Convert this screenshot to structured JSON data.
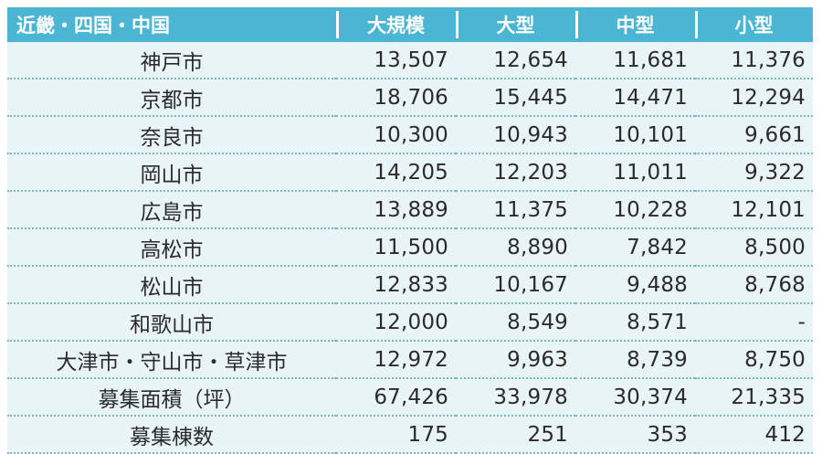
{
  "table": {
    "headers": [
      "近畿・四国・中国",
      "大規模",
      "大型",
      "中型",
      "小型"
    ],
    "rows": [
      [
        "神戸市",
        "13,507",
        "12,654",
        "11,681",
        "11,376"
      ],
      [
        "京都市",
        "18,706",
        "15,445",
        "14,471",
        "12,294"
      ],
      [
        "奈良市",
        "10,300",
        "10,943",
        "10,101",
        "9,661"
      ],
      [
        "岡山市",
        "14,205",
        "12,203",
        "11,011",
        "9,322"
      ],
      [
        "広島市",
        "13,889",
        "11,375",
        "10,228",
        "12,101"
      ],
      [
        "高松市",
        "11,500",
        "8,890",
        "7,842",
        "8,500"
      ],
      [
        "松山市",
        "12,833",
        "10,167",
        "9,488",
        "8,768"
      ],
      [
        "和歌山市",
        "12,000",
        "8,549",
        "8,571",
        "-"
      ],
      [
        "大津市・守山市・草津市",
        "12,972",
        "9,963",
        "8,739",
        "8,750"
      ],
      [
        "募集面積（坪）",
        "67,426",
        "33,978",
        "30,374",
        "21,335"
      ],
      [
        "募集棟数",
        "175",
        "251",
        "353",
        "412"
      ]
    ]
  },
  "colors": {
    "header_bg": "#4bb6d3",
    "header_text": "#ffffff",
    "row_bg": "#e9f4f7",
    "row_divider": "#7fb3c6",
    "text": "#2b2b2b"
  }
}
